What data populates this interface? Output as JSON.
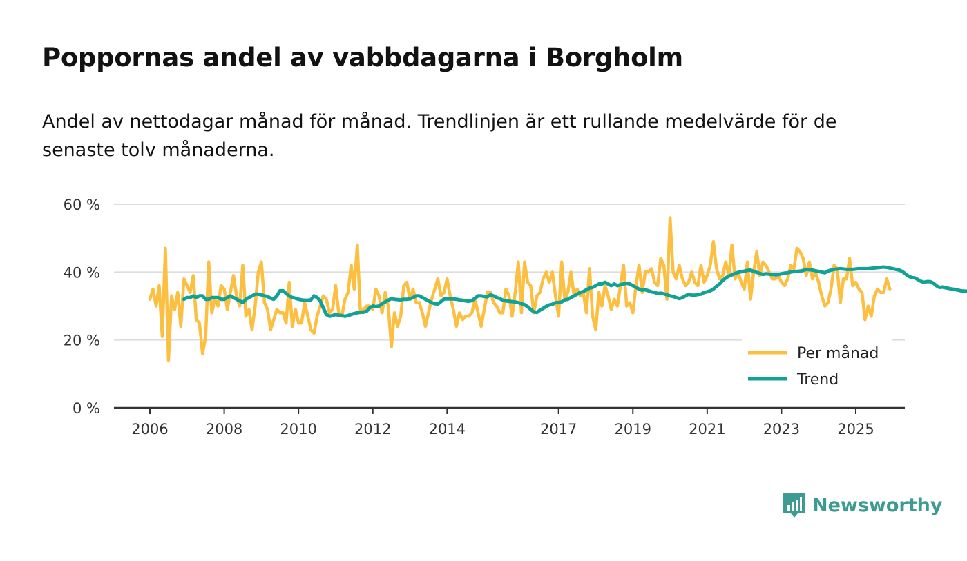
{
  "title": "Poppornas andel av vabbdagarna i Borgholm",
  "subtitle": "Andel av nettodagar månad för månad. Trendlinjen är ett rullande medelvärde för de senaste tolv månaderna.",
  "brand": {
    "name": "Newsworthy",
    "icon": "newsworthy-logo-icon",
    "color": "#3d9b92"
  },
  "colors": {
    "monthly": "#fcbf42",
    "trend": "#12a195",
    "grid": "#dddddd",
    "axis": "#333333"
  },
  "chart_data": {
    "type": "line",
    "x_label": "",
    "y_label": "",
    "ylim": [
      0,
      60
    ],
    "xlim": [
      2006,
      2026.3
    ],
    "y_ticks": [
      {
        "value": 0,
        "label": "0 %"
      },
      {
        "value": 20,
        "label": "20 %"
      },
      {
        "value": 40,
        "label": "40 %"
      },
      {
        "value": 60,
        "label": "60 %"
      }
    ],
    "x_ticks": [
      {
        "value": 2006,
        "label": "2006"
      },
      {
        "value": 2008,
        "label": "2008"
      },
      {
        "value": 2010,
        "label": "2010"
      },
      {
        "value": 2012,
        "label": "2012"
      },
      {
        "value": 2014,
        "label": "2014"
      },
      {
        "value": 2017,
        "label": "2017"
      },
      {
        "value": 2019,
        "label": "2019"
      },
      {
        "value": 2021,
        "label": "2021"
      },
      {
        "value": 2023,
        "label": "2023"
      },
      {
        "value": 2025,
        "label": "2025"
      }
    ],
    "grid": true,
    "legend_position": "bottom-right",
    "series": [
      {
        "name": "Per månad",
        "start": 2006.0,
        "step_months": 1,
        "values": [
          32,
          35,
          30,
          36,
          21,
          47,
          14,
          33,
          29,
          34,
          24,
          38,
          36,
          34,
          39,
          26,
          25,
          16,
          21,
          43,
          28,
          32,
          30,
          36,
          35,
          29,
          34,
          39,
          33,
          30,
          42,
          27,
          29,
          23,
          30,
          40,
          43,
          31,
          29,
          23,
          26,
          29,
          28,
          28,
          25,
          37,
          24,
          29,
          25,
          25,
          31,
          27,
          23,
          22,
          27,
          30,
          33,
          32,
          28,
          29,
          36,
          28,
          27,
          32,
          34,
          42,
          35,
          48,
          28,
          29,
          30,
          30,
          29,
          35,
          33,
          28,
          34,
          30,
          18,
          28,
          24,
          27,
          36,
          37,
          32,
          35,
          31,
          31,
          28,
          24,
          28,
          32,
          35,
          38,
          33,
          34,
          38,
          33,
          29,
          24,
          28,
          26,
          27,
          27,
          28,
          32,
          28,
          24,
          29,
          34,
          34,
          31,
          30,
          28,
          28,
          35,
          33,
          27,
          34,
          43,
          28,
          43,
          37,
          36,
          28,
          33,
          34,
          38,
          40,
          37,
          40,
          33,
          27,
          43,
          32,
          34,
          40,
          33,
          35,
          33,
          34,
          28,
          41,
          27,
          23,
          34,
          30,
          36,
          33,
          29,
          32,
          30,
          36,
          42,
          30,
          31,
          28,
          36,
          42,
          34,
          40,
          40,
          41,
          37,
          36,
          44,
          42,
          32,
          56,
          40,
          38,
          42,
          38,
          36,
          37,
          40,
          37,
          36,
          42,
          37,
          39,
          42,
          49,
          41,
          38,
          39,
          43,
          39,
          48,
          38,
          40,
          37,
          35,
          43,
          32,
          40,
          46,
          39,
          43,
          42,
          40,
          38,
          38,
          39,
          37,
          36,
          38,
          42,
          41,
          47,
          46,
          44,
          39,
          43,
          38,
          40,
          37,
          33,
          30,
          31,
          35,
          42,
          41,
          31,
          38,
          38,
          44,
          36,
          37,
          35,
          34,
          26,
          30,
          27,
          33,
          35,
          34,
          34,
          38,
          35
        ],
        "color": "#fcbf42"
      },
      {
        "name": "Trend",
        "start": 2006.917,
        "step_months": 1,
        "values": [
          32,
          32.5,
          32.5,
          33,
          32.5,
          33,
          33,
          32,
          32,
          32.5,
          32.5,
          32.5,
          32,
          32,
          32.5,
          33,
          32.5,
          32,
          31.5,
          31,
          32,
          32.5,
          33,
          33.5,
          33.5,
          33.3,
          33,
          32.8,
          32.3,
          32,
          33,
          34.5,
          34.5,
          33.7,
          33,
          32.5,
          32.3,
          32,
          31.8,
          31.7,
          31.7,
          31.8,
          33,
          32.5,
          31.5,
          29.5,
          27.5,
          27,
          27.2,
          27.5,
          27.3,
          27.2,
          27,
          27.2,
          27.5,
          27.8,
          28,
          28.2,
          28.2,
          28.5,
          29.5,
          30,
          29.8,
          30,
          30.7,
          31.2,
          31.7,
          32.2,
          32,
          31.9,
          31.8,
          32,
          32,
          32.1,
          32.5,
          33,
          33,
          32.5,
          32,
          31.5,
          31,
          30.7,
          30.6,
          31.3,
          32.1,
          32.1,
          32.1,
          32.1,
          32,
          31.8,
          31.7,
          31.5,
          31.4,
          31.6,
          32.3,
          33,
          33,
          32.8,
          32.7,
          33.3,
          33,
          32.5,
          32.2,
          31.7,
          31.5,
          31.4,
          31.3,
          31.2,
          31,
          30.7,
          30.4,
          29.8,
          29,
          28.3,
          28.1,
          28.8,
          29.3,
          29.9,
          30.3,
          30.5,
          31,
          31,
          31.2,
          31.8,
          32,
          32.5,
          33,
          33.5,
          34,
          34.3,
          34.8,
          35.3,
          35.5,
          36,
          36.5,
          36.5,
          37,
          36.5,
          36,
          36.5,
          36,
          36.3,
          36.5,
          36.7,
          36.5,
          36,
          35.5,
          35,
          34.7,
          34.8,
          34.5,
          34.2,
          34,
          33.7,
          33.8,
          33.6,
          33.3,
          33,
          32.8,
          32.5,
          32.2,
          32.5,
          33,
          33.5,
          33.2,
          33.2,
          33.4,
          33.5,
          34,
          34.2,
          34.5,
          35,
          35.8,
          36.5,
          37.5,
          38.3,
          38.8,
          39.2,
          39.6,
          39.9,
          40.1,
          40.3,
          40.5,
          40.6,
          40.2,
          39.9,
          39.6,
          39.3,
          39.5,
          39.4,
          39.3,
          39.2,
          39.3,
          39.5,
          39.7,
          39.8,
          40,
          40.2,
          40.2,
          40.3,
          40.5,
          40.8,
          40.7,
          40.6,
          40.4,
          40.2,
          40,
          39.8,
          40.3,
          40.6,
          40.8,
          40.9,
          41,
          40.9,
          40.8,
          40.8,
          40.8,
          40.9,
          41,
          41,
          41,
          41,
          41.1,
          41.2,
          41.3,
          41.4,
          41.5,
          41.4,
          41.2,
          41,
          40.8,
          40.6,
          40.2,
          39.5,
          38.8,
          38.4,
          38.3,
          37.8,
          37.3,
          37,
          37.2,
          37.2,
          36.8,
          36,
          35.5,
          35.6,
          35.4,
          35.2,
          35,
          34.9,
          34.7,
          34.5,
          34.4,
          34.4
        ],
        "color": "#12a195"
      }
    ]
  }
}
